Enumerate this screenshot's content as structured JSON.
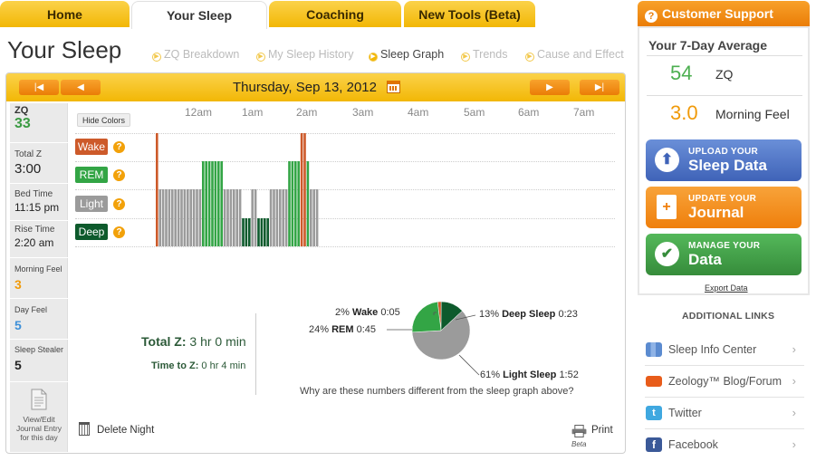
{
  "nav": {
    "tabs": [
      {
        "label": "Home"
      },
      {
        "label": "Your Sleep"
      },
      {
        "label": "Coaching"
      },
      {
        "label": "New Tools (Beta)"
      }
    ],
    "support": "Customer Support"
  },
  "page": {
    "title": "Your Sleep",
    "subnav": [
      "ZQ Breakdown",
      "My Sleep History",
      "Sleep Graph",
      "Trends",
      "Cause and Effect"
    ]
  },
  "datebar": {
    "date": "Thursday, Sep 13, 2012"
  },
  "stats": {
    "zq_label": "ZQ",
    "zq": "33",
    "total_label": "Total Z",
    "total": "3:00",
    "bed_label": "Bed Time",
    "bed": "11:15 pm",
    "rise_label": "Rise Time",
    "rise": "2:20 am",
    "morning_label": "Morning Feel",
    "morning": "3",
    "day_label": "Day Feel",
    "day": "5",
    "stealer_label": "Sleep Stealer",
    "stealer": "5",
    "journal": "View/Edit Journal Entry for this day"
  },
  "graph": {
    "hide_colors": "Hide Colors",
    "times": [
      "12am",
      "1am",
      "2am",
      "3am",
      "4am",
      "5am",
      "6am",
      "7am"
    ],
    "stages": [
      {
        "name": "Wake",
        "color": "#cd5a2a"
      },
      {
        "name": "REM",
        "color": "#33a545"
      },
      {
        "name": "Light",
        "color": "#9b9b9b"
      },
      {
        "name": "Deep",
        "color": "#0d5a2c"
      }
    ],
    "help": "?"
  },
  "chart_data": {
    "type": "pie",
    "slices": [
      {
        "name": "Wake",
        "percent": 2,
        "duration": "0:05",
        "color": "#cd5a2a"
      },
      {
        "name": "Deep Sleep",
        "percent": 13,
        "duration": "0:23",
        "color": "#0d5a2c"
      },
      {
        "name": "Light Sleep",
        "percent": 61,
        "duration": "1:52",
        "color": "#9b9b9b"
      },
      {
        "name": "REM",
        "percent": 24,
        "duration": "0:45",
        "color": "#33a545"
      }
    ]
  },
  "totals": {
    "total_z_label": "Total Z:",
    "total_z_value": "3 hr 0 min",
    "time_to_z_label": "Time to Z:",
    "time_to_z_value": "0 hr 4 min",
    "why": "Why are these numbers different from the sleep graph above?"
  },
  "actions": {
    "delete": "Delete Night",
    "print": "Print",
    "beta": "Beta"
  },
  "average": {
    "title": "Your 7-Day Average",
    "zq_value": "54",
    "zq_label": "ZQ",
    "zq_color": "#4caf50",
    "feel_value": "3.0",
    "feel_label": "Morning Feel",
    "feel_color": "#f09a0a"
  },
  "buttons": [
    {
      "small": "UPLOAD YOUR",
      "big": "Sleep Data",
      "color": "#4a70c5",
      "icon": "upload-icon"
    },
    {
      "small": "UPDATE YOUR",
      "big": "Journal",
      "color": "#f38b17",
      "icon": "journal-icon"
    },
    {
      "small": "MANAGE YOUR",
      "big": "Data",
      "color": "#43a649",
      "icon": "check-icon"
    }
  ],
  "export": "Export Data",
  "links": {
    "title": "ADDITIONAL LINKS",
    "items": [
      {
        "label": "Sleep Info Center"
      },
      {
        "label": "Zeology™ Blog/Forum"
      },
      {
        "label": "Twitter"
      },
      {
        "label": "Facebook"
      }
    ]
  }
}
